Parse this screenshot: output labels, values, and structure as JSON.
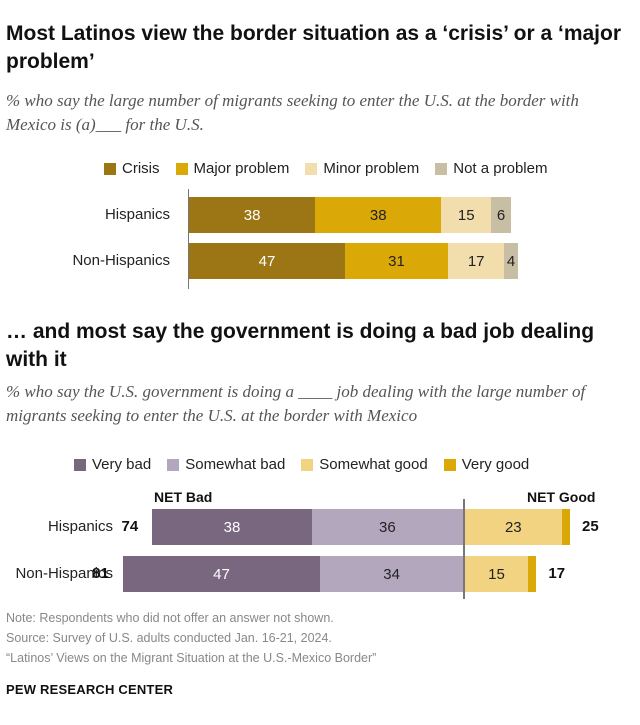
{
  "chart_data": [
    {
      "type": "bar",
      "orientation": "horizontal-stacked",
      "title": "Most Latinos view the border situation as a ‘crisis’ or a ‘major problem’",
      "subtitle": "% who say the large number of migrants seeking to enter the U.S. at the border with Mexico is (a)___ for the U.S.",
      "categories": [
        "Hispanics",
        "Non-Hispanics"
      ],
      "series": [
        {
          "name": "Crisis",
          "color": "#9c7614",
          "label_color": "#ffffff",
          "values": [
            38,
            47
          ]
        },
        {
          "name": "Major problem",
          "color": "#dba907",
          "label_color": "#222222",
          "values": [
            38,
            31
          ]
        },
        {
          "name": "Minor problem",
          "color": "#f2ddac",
          "label_color": "#222222",
          "values": [
            15,
            17
          ]
        },
        {
          "name": "Not a problem",
          "color": "#c8bea3",
          "label_color": "#222222",
          "values": [
            6,
            4
          ]
        }
      ]
    },
    {
      "type": "bar",
      "orientation": "diverging-stacked",
      "title": "… and most say the government is doing a bad job dealing with it",
      "subtitle": "% who say the U.S. government is doing a ____ job dealing with the large number of migrants seeking to enter the U.S. at the border with Mexico",
      "categories": [
        "Hispanics",
        "Non-Hispanics"
      ],
      "negative_series": [
        {
          "name": "Somewhat bad",
          "color": "#b3a7be",
          "label_color": "#222222",
          "values": [
            36,
            34
          ]
        },
        {
          "name": "Very bad",
          "color": "#79667f",
          "label_color": "#ffffff",
          "values": [
            38,
            47
          ]
        }
      ],
      "positive_series": [
        {
          "name": "Somewhat good",
          "color": "#f2d382",
          "label_color": "#222222",
          "values": [
            23,
            15
          ]
        },
        {
          "name": "Very good",
          "color": "#dba907",
          "label_color": "#222222",
          "values": [
            2,
            2
          ]
        }
      ],
      "legend_order": [
        "Very bad",
        "Somewhat bad",
        "Somewhat good",
        "Very good"
      ],
      "net_bad_label": "NET Bad",
      "net_good_label": "NET Good",
      "net_bad": [
        74,
        81
      ],
      "net_good": [
        25,
        17
      ]
    }
  ],
  "footer": {
    "note": "Note: Respondents who did not offer an answer not shown.",
    "source": "Source: Survey of U.S. adults conducted Jan. 16-21, 2024.",
    "report": "“Latinos’ Views on the Migrant Situation at the U.S.-Mexico Border”",
    "brand": "PEW RESEARCH CENTER"
  }
}
